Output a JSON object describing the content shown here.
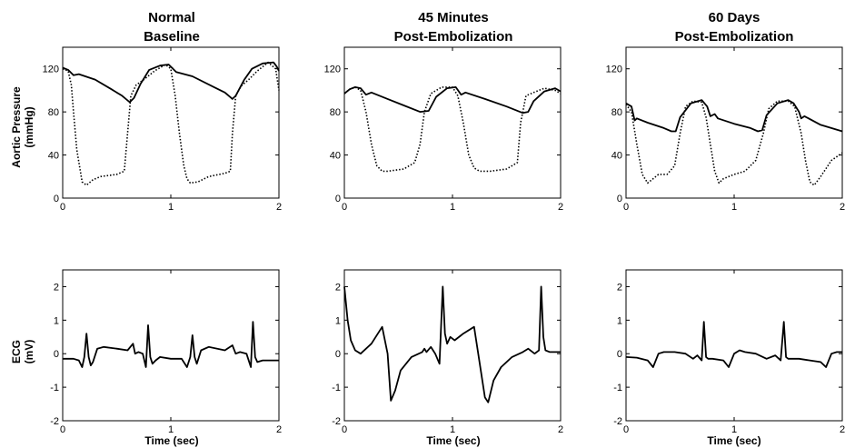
{
  "figure": {
    "columns": [
      {
        "title_line1": "Normal",
        "title_line2": "Baseline"
      },
      {
        "title_line1": "45 Minutes",
        "title_line2": "Post-Embolization"
      },
      {
        "title_line1": "60 Days",
        "title_line2": "Post-Embolization"
      }
    ],
    "rows": [
      {
        "ylabel_line1": "Aortic Pressure",
        "ylabel_line2": "(mmHg)"
      },
      {
        "ylabel_line1": "ECG",
        "ylabel_line2": "(mV)"
      }
    ],
    "xlabel": "Time (sec)"
  },
  "chart_data": [
    {
      "type": "line",
      "panel": "pressure-normal",
      "title": "Normal Baseline",
      "xlabel": "",
      "ylabel": "Aortic Pressure (mmHg)",
      "xlim": [
        0,
        2
      ],
      "ylim": [
        0,
        140
      ],
      "xticks": [
        0,
        1,
        2
      ],
      "yticks": [
        0,
        40,
        80,
        120
      ],
      "grid": false,
      "series": [
        {
          "style": "solid",
          "x": [
            0,
            0.05,
            0.1,
            0.15,
            0.3,
            0.45,
            0.55,
            0.62,
            0.66,
            0.72,
            0.8,
            0.9,
            0.98,
            1.02,
            1.05,
            1.2,
            1.4,
            1.5,
            1.57,
            1.6,
            1.68,
            1.75,
            1.85,
            1.95,
            1.98,
            2.0
          ],
          "y": [
            121,
            119,
            114,
            115,
            110,
            101,
            95,
            89,
            93,
            106,
            119,
            123,
            124,
            120,
            117,
            113,
            103,
            98,
            92,
            95,
            110,
            120,
            125,
            126,
            122,
            118
          ]
        },
        {
          "style": "dotted",
          "x": [
            0,
            0.05,
            0.08,
            0.1,
            0.13,
            0.18,
            0.22,
            0.28,
            0.35,
            0.5,
            0.57,
            0.6,
            0.63,
            0.68,
            0.75,
            0.85,
            0.95,
            1.0,
            1.04,
            1.08,
            1.12,
            1.15,
            1.18,
            1.25,
            1.35,
            1.5,
            1.55,
            1.57,
            1.6,
            1.65,
            1.72,
            1.8,
            1.9,
            1.97,
            2.0
          ],
          "y": [
            120,
            118,
            105,
            80,
            45,
            15,
            12,
            17,
            20,
            22,
            25,
            60,
            95,
            105,
            110,
            118,
            124,
            120,
            95,
            60,
            30,
            18,
            14,
            15,
            20,
            23,
            25,
            60,
            95,
            104,
            110,
            118,
            126,
            120,
            100
          ]
        }
      ]
    },
    {
      "type": "line",
      "panel": "pressure-45min",
      "title": "45 Minutes Post-Embolization",
      "xlabel": "",
      "ylabel": "",
      "xlim": [
        0,
        2
      ],
      "ylim": [
        0,
        140
      ],
      "xticks": [
        0,
        1,
        2
      ],
      "yticks": [
        0,
        40,
        80,
        120
      ],
      "grid": false,
      "series": [
        {
          "style": "solid",
          "x": [
            0,
            0.05,
            0.1,
            0.15,
            0.2,
            0.25,
            0.4,
            0.55,
            0.7,
            0.78,
            0.85,
            0.95,
            1.03,
            1.08,
            1.12,
            1.3,
            1.5,
            1.65,
            1.7,
            1.75,
            1.85,
            1.95,
            2.0
          ],
          "y": [
            97,
            101,
            103,
            102,
            96,
            98,
            92,
            86,
            80,
            81,
            94,
            102,
            103,
            96,
            98,
            92,
            85,
            79,
            80,
            90,
            99,
            102,
            99
          ]
        },
        {
          "style": "dotted",
          "x": [
            0,
            0.05,
            0.1,
            0.15,
            0.2,
            0.25,
            0.3,
            0.35,
            0.4,
            0.55,
            0.65,
            0.7,
            0.74,
            0.8,
            0.9,
            1.0,
            1.05,
            1.1,
            1.15,
            1.2,
            1.25,
            1.35,
            1.5,
            1.6,
            1.63,
            1.68,
            1.75,
            1.85,
            1.95,
            2.0
          ],
          "y": [
            97,
            101,
            103,
            100,
            80,
            50,
            30,
            25,
            25,
            27,
            33,
            50,
            80,
            97,
            103,
            103,
            95,
            70,
            40,
            28,
            25,
            25,
            27,
            33,
            70,
            95,
            98,
            102,
            100,
            97
          ]
        }
      ]
    },
    {
      "type": "line",
      "panel": "pressure-60days",
      "title": "60 Days Post-Embolization",
      "xlabel": "",
      "ylabel": "",
      "xlim": [
        0,
        2
      ],
      "ylim": [
        0,
        140
      ],
      "xticks": [
        0,
        1,
        2
      ],
      "yticks": [
        0,
        40,
        80,
        120
      ],
      "grid": false,
      "series": [
        {
          "style": "solid",
          "x": [
            0,
            0.05,
            0.08,
            0.1,
            0.2,
            0.35,
            0.42,
            0.46,
            0.5,
            0.6,
            0.7,
            0.75,
            0.78,
            0.82,
            0.85,
            1.0,
            1.15,
            1.22,
            1.26,
            1.3,
            1.4,
            1.5,
            1.55,
            1.6,
            1.62,
            1.65,
            1.8,
            2.0
          ],
          "y": [
            88,
            85,
            72,
            74,
            70,
            65,
            62,
            62,
            75,
            88,
            91,
            85,
            76,
            78,
            74,
            69,
            65,
            62,
            63,
            77,
            88,
            91,
            88,
            80,
            74,
            76,
            68,
            62
          ]
        },
        {
          "style": "dotted",
          "x": [
            0,
            0.05,
            0.1,
            0.15,
            0.2,
            0.25,
            0.3,
            0.38,
            0.45,
            0.5,
            0.55,
            0.62,
            0.7,
            0.74,
            0.78,
            0.82,
            0.86,
            0.9,
            1.0,
            1.1,
            1.2,
            1.27,
            1.32,
            1.4,
            1.5,
            1.56,
            1.62,
            1.66,
            1.7,
            1.74,
            1.8,
            1.9,
            2.0
          ],
          "y": [
            87,
            80,
            50,
            22,
            14,
            18,
            22,
            22,
            30,
            60,
            85,
            90,
            89,
            75,
            50,
            25,
            14,
            18,
            22,
            25,
            35,
            60,
            83,
            90,
            90,
            85,
            60,
            35,
            15,
            12,
            20,
            35,
            42
          ]
        }
      ]
    },
    {
      "type": "line",
      "panel": "ecg-normal",
      "title": "",
      "xlabel": "Time (sec)",
      "ylabel": "ECG (mV)",
      "xlim": [
        0,
        2
      ],
      "ylim": [
        -2,
        2.5
      ],
      "xticks": [
        0,
        1,
        2
      ],
      "yticks": [
        -2,
        -1,
        0,
        1,
        2
      ],
      "grid": false,
      "series": [
        {
          "style": "solid",
          "x": [
            0,
            0.1,
            0.15,
            0.18,
            0.2,
            0.22,
            0.24,
            0.26,
            0.28,
            0.32,
            0.38,
            0.5,
            0.6,
            0.65,
            0.67,
            0.7,
            0.74,
            0.77,
            0.79,
            0.81,
            0.83,
            0.86,
            0.9,
            1.0,
            1.1,
            1.15,
            1.18,
            1.2,
            1.22,
            1.24,
            1.28,
            1.35,
            1.5,
            1.57,
            1.6,
            1.64,
            1.7,
            1.74,
            1.76,
            1.78,
            1.8,
            1.85,
            2.0
          ],
          "y": [
            -0.15,
            -0.15,
            -0.2,
            -0.4,
            -0.1,
            0.6,
            -0.1,
            -0.35,
            -0.25,
            0.15,
            0.2,
            0.15,
            0.1,
            0.3,
            0.0,
            0.05,
            0.0,
            -0.4,
            0.85,
            -0.1,
            -0.3,
            -0.2,
            -0.1,
            -0.15,
            -0.15,
            -0.4,
            -0.1,
            0.55,
            -0.1,
            -0.3,
            0.1,
            0.2,
            0.1,
            0.25,
            0.0,
            0.05,
            0.0,
            -0.4,
            0.95,
            -0.1,
            -0.25,
            -0.2,
            -0.2
          ]
        }
      ]
    },
    {
      "type": "line",
      "panel": "ecg-45min",
      "title": "",
      "xlabel": "Time (sec)",
      "ylabel": "",
      "xlim": [
        0,
        2
      ],
      "ylim": [
        -2,
        2.5
      ],
      "xticks": [
        0,
        1,
        2
      ],
      "yticks": [
        -2,
        -1,
        0,
        1,
        2
      ],
      "grid": false,
      "series": [
        {
          "style": "solid",
          "x": [
            0,
            0.03,
            0.06,
            0.1,
            0.15,
            0.25,
            0.35,
            0.4,
            0.43,
            0.47,
            0.52,
            0.62,
            0.72,
            0.74,
            0.76,
            0.8,
            0.84,
            0.88,
            0.91,
            0.93,
            0.95,
            0.98,
            1.02,
            1.1,
            1.2,
            1.3,
            1.33,
            1.38,
            1.45,
            1.55,
            1.65,
            1.7,
            1.76,
            1.8,
            1.82,
            1.84,
            1.86,
            1.9,
            2.0
          ],
          "y": [
            2.0,
            1.0,
            0.4,
            0.1,
            0.0,
            0.3,
            0.8,
            0.0,
            -1.4,
            -1.1,
            -0.5,
            -0.1,
            0.05,
            0.15,
            0.05,
            0.2,
            0.0,
            -0.3,
            2.0,
            0.6,
            0.3,
            0.5,
            0.4,
            0.6,
            0.8,
            -1.3,
            -1.45,
            -0.8,
            -0.4,
            -0.1,
            0.05,
            0.15,
            0.0,
            0.1,
            2.0,
            0.5,
            0.1,
            0.05,
            0.05
          ]
        }
      ]
    },
    {
      "type": "line",
      "panel": "ecg-60days",
      "title": "",
      "xlabel": "Time (sec)",
      "ylabel": "",
      "xlim": [
        0,
        2
      ],
      "ylim": [
        -2,
        2.5
      ],
      "xticks": [
        0,
        1,
        2
      ],
      "yticks": [
        -2,
        -1,
        0,
        1,
        2
      ],
      "grid": false,
      "series": [
        {
          "style": "solid",
          "x": [
            0,
            0.1,
            0.2,
            0.25,
            0.3,
            0.35,
            0.45,
            0.55,
            0.62,
            0.66,
            0.7,
            0.72,
            0.74,
            0.76,
            0.8,
            0.9,
            0.95,
            1.0,
            1.05,
            1.1,
            1.2,
            1.3,
            1.38,
            1.43,
            1.46,
            1.48,
            1.5,
            1.52,
            1.54,
            1.6,
            1.7,
            1.8,
            1.85,
            1.9,
            1.95,
            2.0
          ],
          "y": [
            -0.1,
            -0.12,
            -0.2,
            -0.4,
            0.0,
            0.05,
            0.05,
            0.0,
            -0.15,
            -0.05,
            -0.2,
            0.95,
            -0.1,
            -0.15,
            -0.15,
            -0.2,
            -0.4,
            0.0,
            0.1,
            0.05,
            0.0,
            -0.15,
            -0.05,
            -0.2,
            0.95,
            -0.1,
            -0.15,
            -0.15,
            -0.15,
            -0.15,
            -0.2,
            -0.25,
            -0.4,
            0.0,
            0.05,
            0.05
          ]
        }
      ]
    }
  ]
}
